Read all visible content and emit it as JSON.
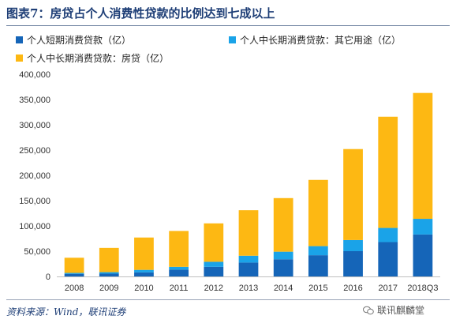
{
  "header": {
    "title": "图表7：房贷占个人消费性贷款的比例达到七成以上"
  },
  "colors": {
    "short_term": "#1565b8",
    "long_other": "#1aa3e8",
    "mortgage": "#fdb813",
    "title": "#1f3f77"
  },
  "chart_data": {
    "type": "bar",
    "stacked": true,
    "categories": [
      "2008",
      "2009",
      "2010",
      "2011",
      "2012",
      "2013",
      "2014",
      "2015",
      "2016",
      "2017",
      "2018Q3"
    ],
    "series": [
      {
        "name": "个人短期消费贷款（亿）",
        "color": "#1565b8",
        "values": [
          5000,
          5500,
          8000,
          13500,
          19000,
          27500,
          34000,
          42000,
          50000,
          68000,
          83000
        ]
      },
      {
        "name": "个人中长期消费贷款：其它用途（亿）",
        "color": "#1aa3e8",
        "values": [
          2000,
          3000,
          5000,
          5500,
          10000,
          13500,
          15000,
          18000,
          22000,
          28000,
          31000
        ]
      },
      {
        "name": "个人中长期消费贷款：房贷（亿）",
        "color": "#fdb813",
        "values": [
          30000,
          48000,
          64000,
          71000,
          76000,
          90000,
          106000,
          131000,
          180000,
          220000,
          249000
        ]
      }
    ],
    "ylim": [
      0,
      400000
    ],
    "yticks": [
      "0",
      "50,000",
      "100,000",
      "150,000",
      "200,000",
      "250,000",
      "300,000",
      "350,000",
      "400,000"
    ],
    "ytick_values": [
      0,
      50000,
      100000,
      150000,
      200000,
      250000,
      300000,
      350000,
      400000
    ],
    "grid": false,
    "legend_position": "top-left"
  },
  "footer": {
    "source": "资料来源：Wind，联讯证券",
    "watermark": "联讯麒麟堂",
    "watermark_icon": "wechat-icon"
  }
}
